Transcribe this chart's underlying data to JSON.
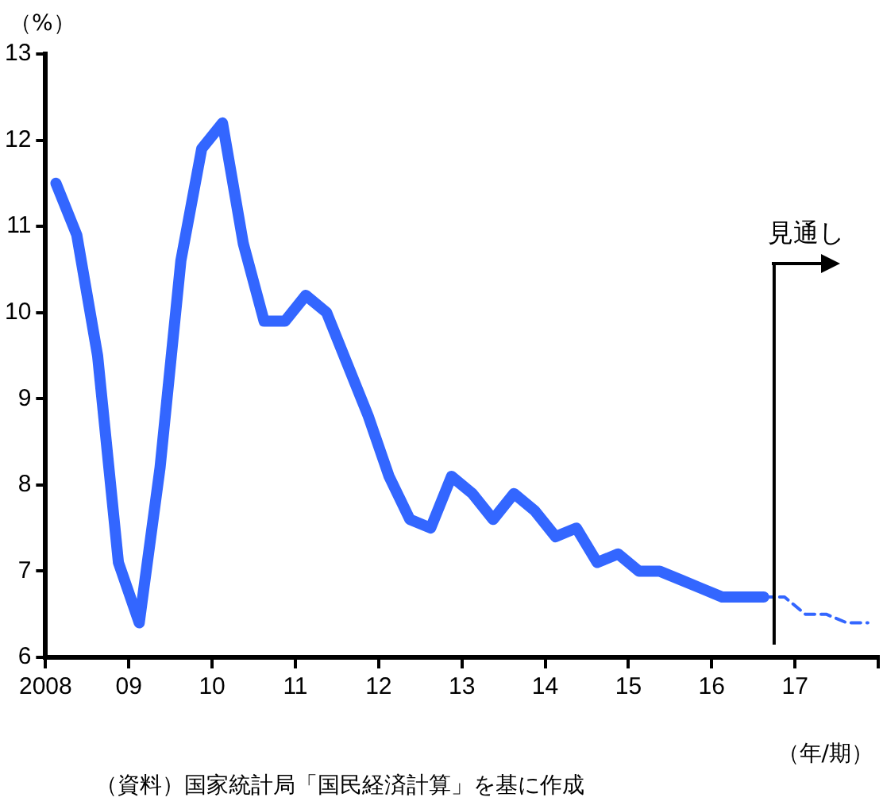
{
  "chart_data": {
    "type": "line",
    "ylabel": "（%）",
    "xlabel": "（年/期）",
    "xlim": [
      2008,
      2018
    ],
    "xticks": [
      {
        "value": 2008,
        "label": "2008"
      },
      {
        "value": 2009,
        "label": "09"
      },
      {
        "value": 2010,
        "label": "10"
      },
      {
        "value": 2011,
        "label": "11"
      },
      {
        "value": 2012,
        "label": "12"
      },
      {
        "value": 2013,
        "label": "13"
      },
      {
        "value": 2014,
        "label": "14"
      },
      {
        "value": 2015,
        "label": "15"
      },
      {
        "value": 2016,
        "label": "16"
      },
      {
        "value": 2017,
        "label": "17"
      },
      {
        "value": 2018,
        "label": null
      }
    ],
    "ylim": [
      6,
      13
    ],
    "yticks": [
      6,
      7,
      8,
      9,
      10,
      11,
      12,
      13
    ],
    "grid": false,
    "legend": false,
    "marker": "none",
    "series": [
      {
        "color": "#3366ff",
        "line_style": "solid",
        "x": [
          2008.125,
          2008.375,
          2008.625,
          2008.875,
          2009.125,
          2009.375,
          2009.625,
          2009.875,
          2010.125,
          2010.375,
          2010.625,
          2010.875,
          2011.125,
          2011.375,
          2011.625,
          2011.875,
          2012.125,
          2012.375,
          2012.625,
          2012.875,
          2013.125,
          2013.375,
          2013.625,
          2013.875,
          2014.125,
          2014.375,
          2014.625,
          2014.875,
          2015.125,
          2015.375,
          2015.625,
          2015.875,
          2016.125,
          2016.375,
          2016.625
        ],
        "values": [
          11.5,
          10.9,
          9.5,
          7.1,
          6.4,
          8.2,
          10.6,
          11.9,
          12.2,
          10.8,
          9.9,
          9.9,
          10.2,
          10.0,
          9.4,
          8.8,
          8.1,
          7.6,
          7.5,
          8.1,
          7.9,
          7.6,
          7.9,
          7.7,
          7.4,
          7.5,
          7.1,
          7.2,
          7.0,
          7.0,
          6.9,
          6.8,
          6.7,
          6.7,
          6.7
        ]
      },
      {
        "color": "#3366ff",
        "line_style": "dashed",
        "x": [
          2016.625,
          2016.875,
          2017.125,
          2017.375,
          2017.625,
          2017.875
        ],
        "values": [
          6.7,
          6.7,
          6.5,
          6.5,
          6.4,
          6.4
        ]
      }
    ],
    "ref_lines": [
      {
        "axis": "x",
        "value": 2016.75,
        "label": "見通し",
        "color": "#000000"
      }
    ],
    "annotations": [
      "（資料）国家統計局「国民経済計算」を基に作成"
    ]
  }
}
